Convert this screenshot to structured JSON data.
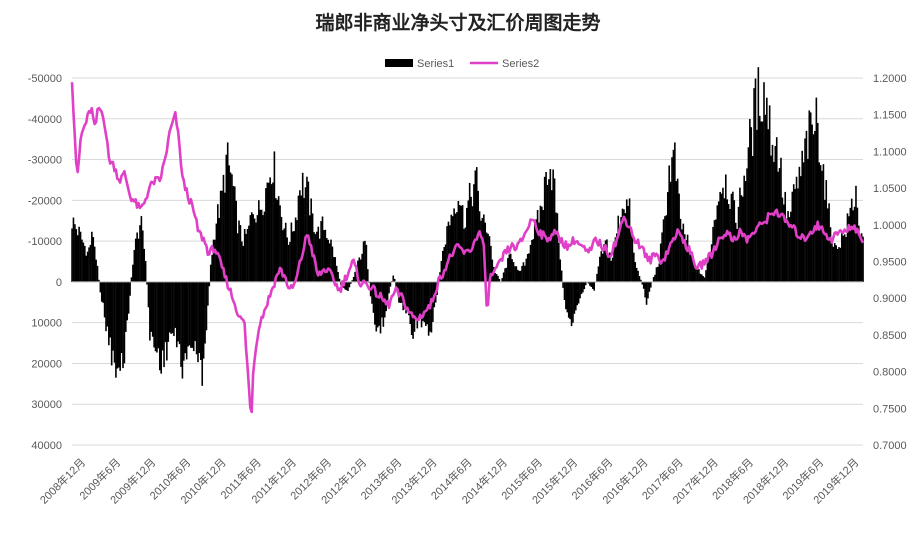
{
  "chart_data": {
    "type": "bar+line",
    "title": "瑞郎非商业净头寸及汇价周图走势",
    "legend": {
      "position": "top",
      "entries": [
        "Series1",
        "Series2"
      ]
    },
    "colors": {
      "series1": "#000000",
      "series2": "#E040C8"
    },
    "y_left": {
      "range": [
        -50000,
        40000
      ],
      "reversed": true,
      "ticks": [
        -50000,
        -40000,
        -30000,
        -20000,
        -10000,
        0,
        10000,
        20000,
        30000,
        40000
      ],
      "tick_labels": [
        "-50000",
        "-40000",
        "-30000",
        "-20000",
        "-10000",
        "0",
        "10000",
        "20000",
        "30000",
        "40000"
      ]
    },
    "y_right": {
      "range": [
        0.7,
        1.2
      ],
      "ticks": [
        1.2,
        1.15,
        1.1,
        1.05,
        1.0,
        0.95,
        0.9,
        0.85,
        0.8,
        0.75,
        0.7
      ],
      "tick_labels": [
        "1.2000",
        "1.1500",
        "1.1000",
        "1.0500",
        "1.0000",
        "0.9500",
        "0.9000",
        "0.8500",
        "0.8000",
        "0.7500",
        "0.7000"
      ]
    },
    "x": {
      "categories": [
        "2008年12月",
        "2009年6月",
        "2009年12月",
        "2010年6月",
        "2010年12月",
        "2011年6月",
        "2011年12月",
        "2012年6月",
        "2012年12月",
        "2013年6月",
        "2013年12月",
        "2014年6月",
        "2014年12月",
        "2015年6月",
        "2015年12月",
        "2016年6月",
        "2016年12月",
        "2017年6月",
        "2017年12月",
        "2018年6月",
        "2018年12月",
        "2019年6月",
        "2019年12月"
      ]
    },
    "series": [
      {
        "name": "Series1",
        "type": "bar",
        "axis": "left",
        "keyframes": [
          [
            0,
            -15000
          ],
          [
            0.2,
            -12000
          ],
          [
            0.45,
            -7000
          ],
          [
            0.6,
            -12000
          ],
          [
            0.8,
            2000
          ],
          [
            1.0,
            12000
          ],
          [
            1.25,
            23000
          ],
          [
            1.45,
            20000
          ],
          [
            1.6,
            8000
          ],
          [
            1.75,
            -7000
          ],
          [
            1.95,
            -15000
          ],
          [
            2.1,
            -5000
          ],
          [
            2.2,
            12000
          ],
          [
            2.4,
            17000
          ],
          [
            2.6,
            20000
          ],
          [
            2.8,
            12000
          ],
          [
            3.0,
            15000
          ],
          [
            3.2,
            22000
          ],
          [
            3.35,
            14000
          ],
          [
            3.5,
            17000
          ],
          [
            3.7,
            22000
          ],
          [
            3.85,
            8000
          ],
          [
            3.95,
            -5000
          ],
          [
            4.1,
            -15000
          ],
          [
            4.25,
            -20000
          ],
          [
            4.4,
            -30000
          ],
          [
            4.55,
            -25000
          ],
          [
            4.7,
            -15000
          ],
          [
            4.85,
            -10000
          ],
          [
            5.0,
            -12000
          ],
          [
            5.15,
            -18000
          ],
          [
            5.3,
            -17000
          ],
          [
            5.5,
            -22000
          ],
          [
            5.7,
            -30000
          ],
          [
            5.85,
            -22000
          ],
          [
            6.0,
            -15000
          ],
          [
            6.15,
            -10000
          ],
          [
            6.35,
            -15000
          ],
          [
            6.5,
            -25000
          ],
          [
            6.7,
            -22000
          ],
          [
            6.85,
            -15000
          ],
          [
            7.0,
            -12000
          ],
          [
            7.15,
            -14000
          ],
          [
            7.35,
            -10000
          ],
          [
            7.5,
            -5000
          ],
          [
            7.65,
            1000
          ],
          [
            7.85,
            2000
          ],
          [
            8.0,
            -1000
          ],
          [
            8.15,
            -5000
          ],
          [
            8.35,
            -10000
          ],
          [
            8.5,
            5000
          ],
          [
            8.65,
            12000
          ],
          [
            8.85,
            10000
          ],
          [
            9.0,
            3000
          ],
          [
            9.15,
            -2000
          ],
          [
            9.3,
            5000
          ],
          [
            9.5,
            7000
          ],
          [
            9.7,
            12000
          ],
          [
            9.85,
            9000
          ],
          [
            10.0,
            11000
          ],
          [
            10.2,
            14000
          ],
          [
            10.35,
            5000
          ],
          [
            10.5,
            -5000
          ],
          [
            10.7,
            -14000
          ],
          [
            10.85,
            -18000
          ],
          [
            11.0,
            -22000
          ],
          [
            11.15,
            -15000
          ],
          [
            11.3,
            -20000
          ],
          [
            11.5,
            -25000
          ],
          [
            11.65,
            -15000
          ],
          [
            11.85,
            -13000
          ],
          [
            12.0,
            -3000
          ],
          [
            12.2,
            0
          ],
          [
            12.35,
            -4000
          ],
          [
            12.5,
            -7000
          ],
          [
            12.7,
            -2000
          ],
          [
            12.9,
            -5000
          ],
          [
            13.05,
            -10000
          ],
          [
            13.25,
            -15000
          ],
          [
            13.4,
            -20000
          ],
          [
            13.55,
            -30000
          ],
          [
            13.7,
            -25000
          ],
          [
            13.85,
            -10000
          ],
          [
            14.0,
            5000
          ],
          [
            14.2,
            10000
          ],
          [
            14.35,
            7000
          ],
          [
            14.5,
            3000
          ],
          [
            14.65,
            0
          ],
          [
            14.85,
            2000
          ],
          [
            15.0,
            -5000
          ],
          [
            15.2,
            -10000
          ],
          [
            15.35,
            -5000
          ],
          [
            15.55,
            -15000
          ],
          [
            15.7,
            -20000
          ],
          [
            15.85,
            -18000
          ],
          [
            16.0,
            -5000
          ],
          [
            16.2,
            0
          ],
          [
            16.35,
            5000
          ],
          [
            16.5,
            0
          ],
          [
            16.7,
            -5000
          ],
          [
            16.85,
            -15000
          ],
          [
            17.0,
            -28000
          ],
          [
            17.15,
            -30000
          ],
          [
            17.3,
            -15000
          ],
          [
            17.5,
            -10000
          ],
          [
            17.65,
            -5000
          ],
          [
            17.8,
            -3000
          ],
          [
            18.0,
            -1000
          ],
          [
            18.15,
            -8000
          ],
          [
            18.3,
            -17000
          ],
          [
            18.45,
            -24000
          ],
          [
            18.6,
            -25000
          ],
          [
            18.75,
            -20000
          ],
          [
            18.9,
            -15000
          ],
          [
            19.1,
            -25000
          ],
          [
            19.3,
            -35000
          ],
          [
            19.45,
            -43000
          ],
          [
            19.6,
            -47000
          ],
          [
            19.75,
            -45000
          ],
          [
            19.9,
            -35000
          ],
          [
            20.1,
            -32000
          ],
          [
            20.25,
            -20000
          ],
          [
            20.4,
            -15000
          ],
          [
            20.55,
            -22000
          ],
          [
            20.75,
            -27000
          ],
          [
            20.9,
            -34000
          ],
          [
            21.05,
            -37000
          ],
          [
            21.2,
            -40000
          ],
          [
            21.4,
            -25000
          ],
          [
            21.55,
            -15000
          ],
          [
            21.7,
            -8000
          ],
          [
            21.85,
            -10000
          ],
          [
            22.0,
            -12000
          ],
          [
            22.15,
            -18000
          ],
          [
            22.3,
            -22000
          ],
          [
            22.45,
            -10000
          ]
        ]
      },
      {
        "name": "Series2",
        "type": "line",
        "axis": "right",
        "keyframes": [
          [
            0,
            1.2
          ],
          [
            0.05,
            1.15
          ],
          [
            0.15,
            1.06
          ],
          [
            0.25,
            1.12
          ],
          [
            0.4,
            1.14
          ],
          [
            0.55,
            1.16
          ],
          [
            0.65,
            1.13
          ],
          [
            0.75,
            1.16
          ],
          [
            0.9,
            1.15
          ],
          [
            1.05,
            1.09
          ],
          [
            1.2,
            1.08
          ],
          [
            1.35,
            1.06
          ],
          [
            1.5,
            1.07
          ],
          [
            1.65,
            1.04
          ],
          [
            1.8,
            1.03
          ],
          [
            1.95,
            1.02
          ],
          [
            2.05,
            1.03
          ],
          [
            2.2,
            1.05
          ],
          [
            2.35,
            1.06
          ],
          [
            2.5,
            1.06
          ],
          [
            2.65,
            1.09
          ],
          [
            2.8,
            1.13
          ],
          [
            2.95,
            1.15
          ],
          [
            3.05,
            1.11
          ],
          [
            3.15,
            1.06
          ],
          [
            3.3,
            1.04
          ],
          [
            3.45,
            1.02
          ],
          [
            3.6,
            0.99
          ],
          [
            3.75,
            0.98
          ],
          [
            3.9,
            0.96
          ],
          [
            4.05,
            0.97
          ],
          [
            4.2,
            0.95
          ],
          [
            4.35,
            0.93
          ],
          [
            4.5,
            0.91
          ],
          [
            4.65,
            0.89
          ],
          [
            4.8,
            0.87
          ],
          [
            4.9,
            0.87
          ],
          [
            5.0,
            0.8
          ],
          [
            5.1,
            0.73
          ],
          [
            5.15,
            0.8
          ],
          [
            5.3,
            0.86
          ],
          [
            5.45,
            0.88
          ],
          [
            5.6,
            0.9
          ],
          [
            5.75,
            0.92
          ],
          [
            5.9,
            0.94
          ],
          [
            6.05,
            0.93
          ],
          [
            6.2,
            0.91
          ],
          [
            6.35,
            0.92
          ],
          [
            6.55,
            0.96
          ],
          [
            6.7,
            0.99
          ],
          [
            6.85,
            0.96
          ],
          [
            7.0,
            0.93
          ],
          [
            7.2,
            0.94
          ],
          [
            7.4,
            0.93
          ],
          [
            7.6,
            0.91
          ],
          [
            7.8,
            0.93
          ],
          [
            8.0,
            0.95
          ],
          [
            8.2,
            0.92
          ],
          [
            8.4,
            0.92
          ],
          [
            8.6,
            0.91
          ],
          [
            8.8,
            0.9
          ],
          [
            9.0,
            0.89
          ],
          [
            9.2,
            0.91
          ],
          [
            9.4,
            0.9
          ],
          [
            9.6,
            0.88
          ],
          [
            9.8,
            0.87
          ],
          [
            10.0,
            0.88
          ],
          [
            10.2,
            0.89
          ],
          [
            10.4,
            0.92
          ],
          [
            10.6,
            0.94
          ],
          [
            10.8,
            0.96
          ],
          [
            11.0,
            0.97
          ],
          [
            11.2,
            0.96
          ],
          [
            11.4,
            0.97
          ],
          [
            11.55,
            0.99
          ],
          [
            11.7,
            0.98
          ],
          [
            11.8,
            0.88
          ],
          [
            11.9,
            0.93
          ],
          [
            12.1,
            0.94
          ],
          [
            12.3,
            0.96
          ],
          [
            12.5,
            0.97
          ],
          [
            12.7,
            0.97
          ],
          [
            12.9,
            0.99
          ],
          [
            13.1,
            1.01
          ],
          [
            13.3,
            0.99
          ],
          [
            13.5,
            0.98
          ],
          [
            13.7,
            0.99
          ],
          [
            13.9,
            0.98
          ],
          [
            14.1,
            0.97
          ],
          [
            14.3,
            0.98
          ],
          [
            14.5,
            0.97
          ],
          [
            14.7,
            0.96
          ],
          [
            14.9,
            0.98
          ],
          [
            15.1,
            0.97
          ],
          [
            15.3,
            0.96
          ],
          [
            15.5,
            0.98
          ],
          [
            15.7,
            1.01
          ],
          [
            15.85,
            1.0
          ],
          [
            16.0,
            0.98
          ],
          [
            16.2,
            0.97
          ],
          [
            16.4,
            0.95
          ],
          [
            16.6,
            0.96
          ],
          [
            16.8,
            0.95
          ],
          [
            17.0,
            0.97
          ],
          [
            17.2,
            0.99
          ],
          [
            17.4,
            0.98
          ],
          [
            17.6,
            0.96
          ],
          [
            17.8,
            0.94
          ],
          [
            18.0,
            0.95
          ],
          [
            18.2,
            0.96
          ],
          [
            18.4,
            0.98
          ],
          [
            18.6,
            0.99
          ],
          [
            18.8,
            0.98
          ],
          [
            19.0,
            0.99
          ],
          [
            19.2,
            0.98
          ],
          [
            19.4,
            0.99
          ],
          [
            19.6,
            1.0
          ],
          [
            19.8,
            1.01
          ],
          [
            20.0,
            1.02
          ],
          [
            20.2,
            1.01
          ],
          [
            20.4,
            1.0
          ],
          [
            20.6,
            0.99
          ],
          [
            20.8,
            0.98
          ],
          [
            21.0,
            0.99
          ],
          [
            21.2,
            1.0
          ],
          [
            21.4,
            0.99
          ],
          [
            21.6,
            0.98
          ],
          [
            21.8,
            0.99
          ],
          [
            22.0,
            0.99
          ],
          [
            22.2,
            1.0
          ],
          [
            22.4,
            0.99
          ],
          [
            22.5,
            0.97
          ]
        ]
      }
    ]
  }
}
